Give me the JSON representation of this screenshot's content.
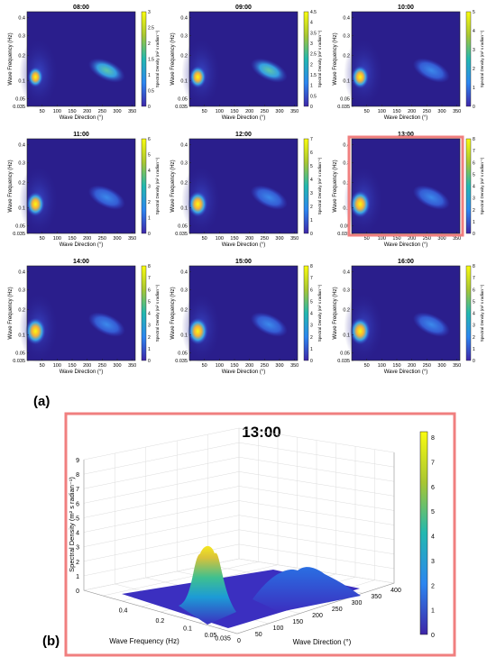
{
  "panel_labels": {
    "a": "(a)",
    "b": "(b)"
  },
  "colors": {
    "bg": "#2a1e8c",
    "highlight": "#f07f7f"
  },
  "chart_data": [
    {
      "type": "heatmap-grid",
      "panels": [
        {
          "title": "08:00",
          "cmax": 3,
          "cticks": [
            "3",
            "2.5",
            "2",
            "1.5",
            "1",
            "0.5",
            "0"
          ],
          "p1": 3.0,
          "p2": 1.9,
          "highlight": false
        },
        {
          "title": "09:00",
          "cmax": 4.5,
          "cticks": [
            "4.5",
            "4",
            "3.5",
            "3",
            "2.5",
            "2",
            "1.5",
            "1",
            "0.5",
            "0"
          ],
          "p1": 4.5,
          "p2": 2.2,
          "highlight": false
        },
        {
          "title": "10:00",
          "cmax": 5,
          "cticks": [
            "5",
            "4",
            "3",
            "2",
            "1",
            "0"
          ],
          "p1": 5.0,
          "p2": 1.7,
          "highlight": false
        },
        {
          "title": "11:00",
          "cmax": 6,
          "cticks": [
            "6",
            "5",
            "4",
            "3",
            "2",
            "1",
            "0"
          ],
          "p1": 6.0,
          "p2": 1.6,
          "highlight": false
        },
        {
          "title": "12:00",
          "cmax": 7,
          "cticks": [
            "7",
            "6",
            "5",
            "4",
            "3",
            "2",
            "1",
            "0"
          ],
          "p1": 7.0,
          "p2": 1.5,
          "highlight": false
        },
        {
          "title": "13:00",
          "cmax": 8,
          "cticks": [
            "8",
            "7",
            "6",
            "5",
            "4",
            "3",
            "2",
            "1",
            "0"
          ],
          "p1": 8.0,
          "p2": 1.6,
          "highlight": true
        },
        {
          "title": "14:00",
          "cmax": 8,
          "cticks": [
            "8",
            "7",
            "6",
            "5",
            "4",
            "3",
            "2",
            "1",
            "0"
          ],
          "p1": 8.0,
          "p2": 1.5,
          "highlight": false
        },
        {
          "title": "15:00",
          "cmax": 8,
          "cticks": [
            "8",
            "7",
            "6",
            "5",
            "4",
            "3",
            "2",
            "1",
            "0"
          ],
          "p1": 8.0,
          "p2": 1.4,
          "highlight": false
        },
        {
          "title": "16:00",
          "cmax": 8,
          "cticks": [
            "8",
            "7",
            "6",
            "5",
            "4",
            "3",
            "2",
            "1",
            "0"
          ],
          "p1": 8.0,
          "p2": 1.3,
          "highlight": false
        }
      ],
      "xlabel": "Wave Direction (°)",
      "ylabel": "Wave Frequency (Hz)",
      "clabel": "Spectral Density (m² s radian⁻¹)",
      "xticks": [
        "50",
        "100",
        "150",
        "200",
        "250",
        "300",
        "350"
      ],
      "yticks": [
        "0.4",
        "0.3",
        "0.2",
        "0.1",
        "0.05",
        "0.035"
      ]
    },
    {
      "type": "surface3d",
      "title": "13:00",
      "zlabel": "Spectral Density (m² s radian⁻¹)",
      "xlabel": "Wave Frequency (Hz)",
      "ylabel": "Wave Direction (°)",
      "zticks": [
        "0",
        "1",
        "2",
        "3",
        "4",
        "5",
        "6",
        "7",
        "8",
        "9"
      ],
      "xticks": [
        "0.4",
        "0.2",
        "0.1",
        "0.05",
        "0.035"
      ],
      "yticks": [
        "0",
        "50",
        "100",
        "150",
        "200",
        "250",
        "300",
        "350",
        "400"
      ],
      "cticks": [
        "8",
        "7",
        "6",
        "5",
        "4",
        "3",
        "2",
        "1",
        "0"
      ],
      "peak1": 8.0,
      "peak2": 1.6
    }
  ]
}
